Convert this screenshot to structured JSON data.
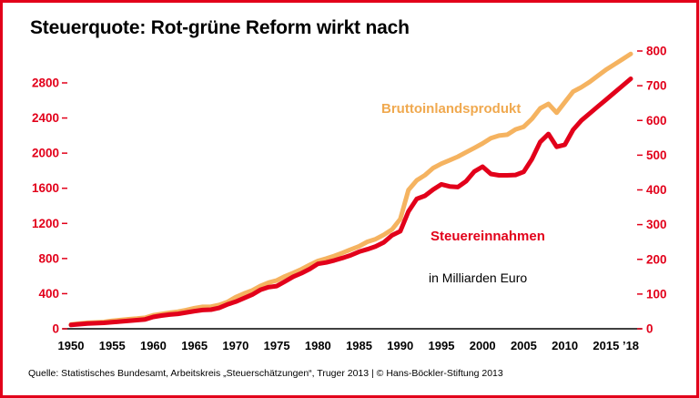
{
  "title": "Steuerquote: Rot-grüne Reform wirkt nach",
  "source": "Quelle: Statistisches Bundesamt, Arbeitskreis „Steuerschätzungen“, Truger 2013 | © Hans-Böckler-Stiftung 2013",
  "labels": {
    "gdp": "Bruttoinlandsprodukt",
    "tax": "Steuereinnahmen",
    "unit": "in Milliarden Euro"
  },
  "colors": {
    "red": "#e2001a",
    "orange": "#f5b360",
    "axis": "#000000"
  },
  "chart_data": {
    "type": "line",
    "title": "Steuerquote: Rot-grüne Reform wirkt nach",
    "xlabel": "",
    "ylabel_left": "Bruttoinlandsprodukt in Milliarden Euro",
    "ylabel_right": "Steuereinnahmen in Milliarden Euro",
    "grid": false,
    "legend_position": "inline-labels",
    "left_axis": {
      "range": [
        0,
        2900
      ],
      "ticks": [
        0,
        400,
        800,
        1200,
        1600,
        2000,
        2400,
        2800
      ]
    },
    "right_axis": {
      "range": [
        0,
        800
      ],
      "ticks": [
        0,
        100,
        200,
        300,
        400,
        500,
        600,
        700,
        800
      ]
    },
    "x_ticks": [
      [
        1950,
        "1950"
      ],
      [
        1955,
        "1955"
      ],
      [
        1960,
        "1960"
      ],
      [
        1965,
        "1965"
      ],
      [
        1970,
        "1970"
      ],
      [
        1975,
        "1975"
      ],
      [
        1980,
        "1980"
      ],
      [
        1985,
        "1985"
      ],
      [
        1990,
        "1990"
      ],
      [
        1995,
        "1995"
      ],
      [
        2000,
        "2000"
      ],
      [
        2005,
        "2005"
      ],
      [
        2010,
        "2010"
      ],
      [
        2015,
        "2015"
      ],
      [
        2018,
        "’18"
      ]
    ],
    "x": [
      1950,
      1951,
      1952,
      1953,
      1954,
      1955,
      1956,
      1957,
      1958,
      1959,
      1960,
      1961,
      1962,
      1963,
      1964,
      1965,
      1966,
      1967,
      1968,
      1969,
      1970,
      1971,
      1972,
      1973,
      1974,
      1975,
      1976,
      1977,
      1978,
      1979,
      1980,
      1981,
      1982,
      1983,
      1984,
      1985,
      1986,
      1987,
      1988,
      1989,
      1990,
      1991,
      1992,
      1993,
      1994,
      1995,
      1996,
      1997,
      1998,
      1999,
      2000,
      2001,
      2002,
      2003,
      2004,
      2005,
      2006,
      2007,
      2008,
      2009,
      2010,
      2011,
      2012,
      2013,
      2014,
      2015,
      2016,
      2017,
      2018
    ],
    "series": [
      {
        "name": "Bruttoinlandsprodukt",
        "axis": "left",
        "color": "#f5b360",
        "values": [
          50,
          60,
          68,
          73,
          78,
          91,
          100,
          109,
          116,
          125,
          154,
          169,
          184,
          195,
          214,
          235,
          250,
          252,
          272,
          305,
          360,
          400,
          436,
          486,
          526,
          551,
          597,
          636,
          678,
          727,
          773,
          800,
          830,
          865,
          903,
          940,
          990,
          1020,
          1070,
          1130,
          1250,
          1580,
          1690,
          1750,
          1830,
          1880,
          1920,
          1960,
          2010,
          2060,
          2110,
          2170,
          2200,
          2210,
          2270,
          2300,
          2390,
          2510,
          2560,
          2460,
          2580,
          2700,
          2750,
          2810,
          2880,
          2950,
          3010,
          3070,
          3130
        ]
      },
      {
        "name": "Steuereinnahmen",
        "axis": "right",
        "color": "#e2001a",
        "values": [
          11,
          13,
          15,
          16,
          17,
          19,
          21,
          23,
          25,
          27,
          34,
          38,
          41,
          43,
          47,
          51,
          54,
          55,
          60,
          70,
          78,
          88,
          98,
          112,
          120,
          123,
          136,
          150,
          160,
          172,
          187,
          191,
          197,
          204,
          212,
          222,
          229,
          237,
          249,
          269,
          281,
          338,
          374,
          383,
          401,
          416,
          410,
          408,
          425,
          453,
          467,
          446,
          442,
          442,
          443,
          452,
          489,
          538,
          561,
          524,
          530,
          573,
          600,
          620,
          640,
          660,
          680,
          700,
          720
        ]
      }
    ]
  }
}
